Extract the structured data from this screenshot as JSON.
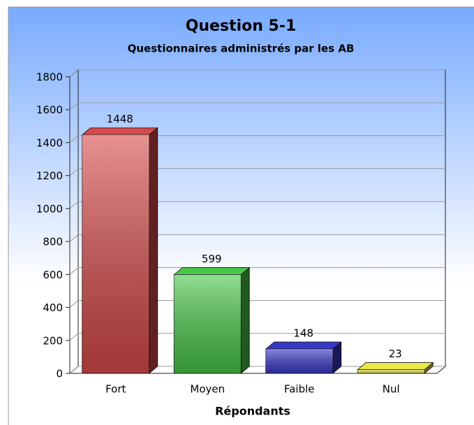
{
  "chart_data": {
    "type": "bar3d",
    "title": "Question 5-1",
    "subtitle": "Questionnaires administrés par les AB",
    "x_label": "Répondants",
    "categories": [
      "Fort",
      "Moyen",
      "Faible",
      "Nul"
    ],
    "values": [
      1448,
      599,
      148,
      23
    ],
    "colors": [
      "#d84a4a",
      "#48c848",
      "#3838c8",
      "#e8e848"
    ],
    "ylim": [
      0,
      1800
    ],
    "yticks": [
      0,
      200,
      400,
      600,
      800,
      1000,
      1200,
      1400,
      1600,
      1800
    ],
    "grid": true
  }
}
